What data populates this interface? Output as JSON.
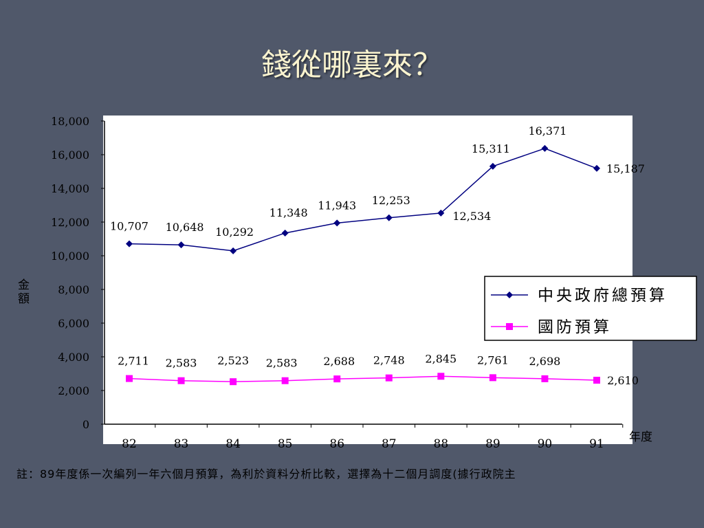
{
  "slide": {
    "title": "錢從哪裏來？",
    "footnote": "註：89年度係一次編列一年六個月預算，為利於資料分析比較，選擇為十二個月調度(據行政院主"
  },
  "chart_data": {
    "type": "line",
    "categories": [
      "82",
      "83",
      "84",
      "85",
      "86",
      "87",
      "88",
      "89",
      "90",
      "91"
    ],
    "ylabel": "金額",
    "xlabel": "年度",
    "ylim": [
      0,
      18000
    ],
    "yticks": [
      0,
      2000,
      4000,
      6000,
      8000,
      10000,
      12000,
      14000,
      16000,
      18000
    ],
    "ytick_labels": [
      "0",
      "2,000",
      "4,000",
      "6,000",
      "8,000",
      "10,000",
      "12,000",
      "14,000",
      "16,000",
      "18,000"
    ],
    "grid": false,
    "legend_position": "right",
    "series": [
      {
        "name": "中央政府總預算",
        "color": "#000080",
        "marker": "diamond",
        "values": [
          10707,
          10648,
          10292,
          11348,
          11943,
          12253,
          12534,
          15311,
          16371,
          15187
        ],
        "labels": [
          "10,707",
          "10,648",
          "10,292",
          "11,348",
          "11,943",
          "12,253",
          "12,534",
          "15,311",
          "16,371",
          "15,187"
        ]
      },
      {
        "name": "國防預算",
        "color": "#ff00ff",
        "marker": "square",
        "values": [
          2711,
          2583,
          2523,
          2583,
          2688,
          2748,
          2845,
          2761,
          2698,
          2610
        ],
        "labels": [
          "2,711",
          "2,583",
          "2,523",
          "2,583",
          "2,688",
          "2,748",
          "2,845",
          "2,761",
          "2,698",
          "2,610"
        ]
      }
    ]
  }
}
